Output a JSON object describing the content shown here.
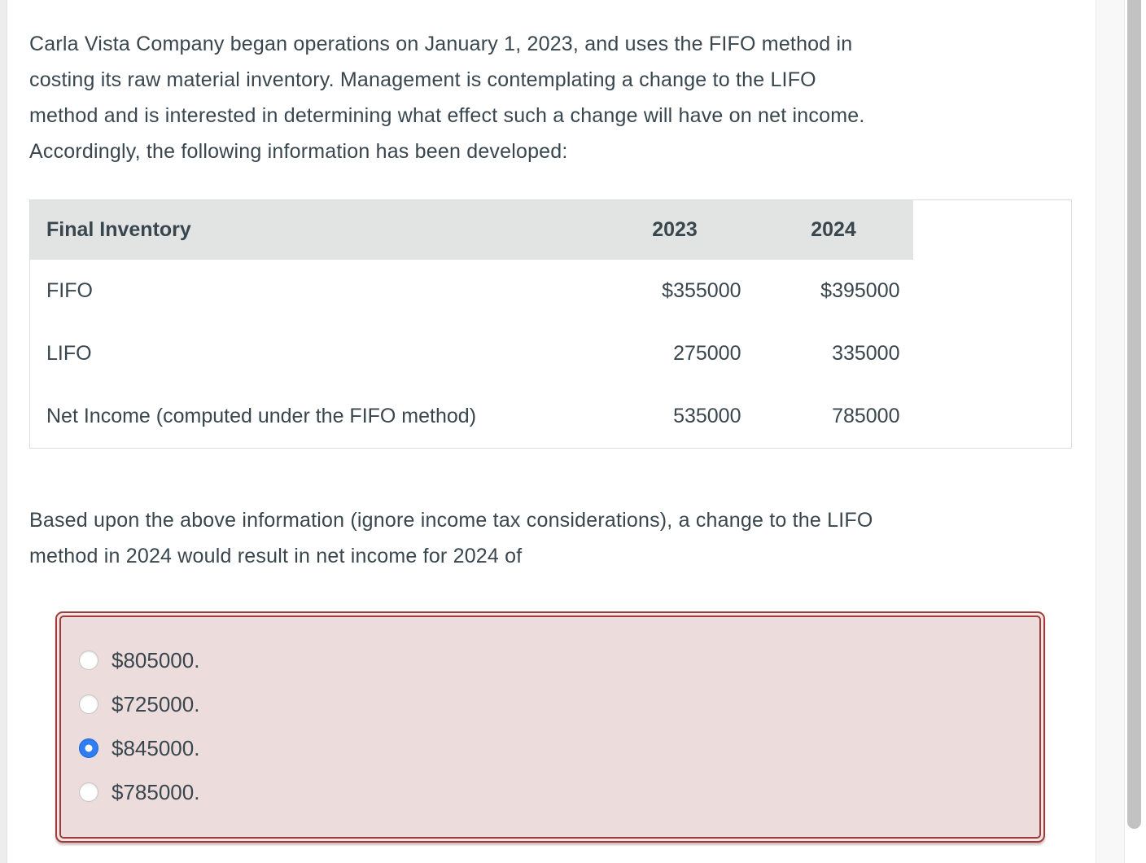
{
  "colors": {
    "text": "#39464e",
    "table_header_gray": "#e2e3e3",
    "answer_border_red": "#9c3d3a",
    "answer_fill_pink": "#ecdcdc",
    "radio_selected_blue": "#2e7df2",
    "scrollbar_thumb": "#c2c2c2"
  },
  "intro": {
    "lines": [
      "Carla Vista Company began operations on January 1, 2023, and uses the FIFO method in",
      "costing its raw material inventory. Management is contemplating a change to the LIFO",
      "method and is interested in determining what effect such a change will have on net income.",
      "Accordingly, the following information has been developed:"
    ]
  },
  "table": {
    "header": {
      "label": "Final Inventory",
      "col_2023": "2023",
      "col_2024": "2024"
    },
    "rows": [
      {
        "label": "FIFO",
        "y2023": "$355000",
        "y2024": "$395000"
      },
      {
        "label": "LIFO",
        "y2023": "275000",
        "y2024": "335000"
      },
      {
        "label": "Net Income (computed under the FIFO method)",
        "y2023": "535000",
        "y2024": "785000"
      }
    ]
  },
  "question": {
    "lines": [
      "Based upon the above information (ignore income tax considerations), a change to the LIFO",
      "method in 2024 would result in net income for 2024 of"
    ]
  },
  "options": {
    "selected_index": 2,
    "items": [
      {
        "label": "$805000."
      },
      {
        "label": "$725000."
      },
      {
        "label": "$845000."
      },
      {
        "label": "$785000."
      }
    ]
  }
}
